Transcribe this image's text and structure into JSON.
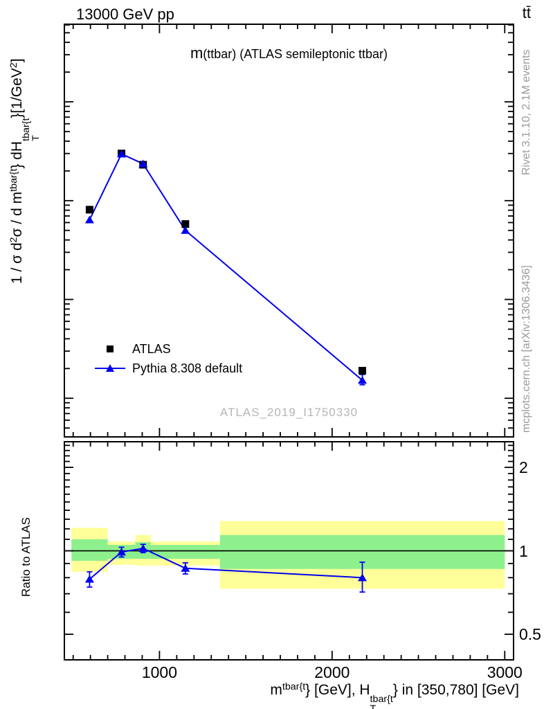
{
  "header": {
    "left": "13000 GeV pp",
    "right": "tt̄"
  },
  "main_title": {
    "prefix": "m",
    "rest": "(ttbar) (ATLAS semileptonic ttbar)"
  },
  "legend": {
    "atlas": "ATLAS",
    "pythia": "Pythia 8.308 default"
  },
  "watermark": "ATLAS_2019_I1750330",
  "side_notes": {
    "top": "Rivet 3.1.10,  2.1M events",
    "bottom": "mcplots.cern.ch [arXiv:1306.3436]"
  },
  "colors": {
    "atlas": "#000000",
    "pythia": "#0000ee",
    "band_green": "#8DF08D",
    "band_yellow": "#FFFF99",
    "frame": "#000000",
    "gray_text": "#9a9a9a",
    "watermark_gray": "#b5b5b5"
  },
  "chart_data": [
    {
      "type": "line",
      "panel": "main",
      "title": "m(ttbar) (ATLAS semileptonic ttbar)",
      "xscale": "linear",
      "yscale": "log",
      "xlim": [
        445,
        3055
      ],
      "ylim": [
        4e-09,
        6.2e-05
      ],
      "xlabel": "m^tbar{t} [GeV], H_T^tbar{t} in [350,780] [GeV]",
      "ylabel": "1 / sigma d2sigma / d m^tbar{t} dH_T^tbar{t} [1/GeV2]",
      "x": [
        595,
        780,
        905,
        1150,
        2175
      ],
      "bin_edges": [
        490,
        700,
        860,
        950,
        1350,
        3000
      ],
      "series": [
        {
          "name": "ATLAS",
          "marker": "square",
          "color": "#000000",
          "line": false,
          "values": [
            8.1e-07,
            3e-06,
            2.31e-06,
            5.8e-07,
            1.9e-08
          ]
        },
        {
          "name": "Pythia 8.308 default",
          "marker": "triangle",
          "color": "#0000ee",
          "line": true,
          "values": [
            6.4e-07,
            2.97e-06,
            2.36e-06,
            5e-07,
            1.52e-08
          ],
          "yerr_lo": [
            0,
            0,
            0,
            0,
            1.5e-09
          ],
          "yerr_hi": [
            0,
            0,
            0,
            0,
            2.2e-09
          ]
        }
      ],
      "ytick_base": "10",
      "ytick_exponents": [
        -5,
        -6,
        -7,
        -8
      ],
      "xticks": [
        1000,
        2000,
        3000
      ],
      "xtick_minor_step": 100,
      "ylabel_parts": [
        {
          "t": "1 / σ d"
        },
        {
          "sup": "2"
        },
        {
          "t": "σ / d m"
        },
        {
          "sup": "tbar{t"
        },
        {
          "t": "} dH"
        },
        {
          "stack": {
            "sup": "tbar{t",
            "sub": "T"
          }
        },
        {
          "t": "}[1/GeV"
        },
        {
          "sup": "2"
        },
        {
          "t": "]"
        }
      ]
    },
    {
      "type": "line",
      "panel": "ratio",
      "ylabel": "Ratio to ATLAS",
      "xscale": "linear",
      "yscale": "log",
      "xlim": [
        445,
        3055
      ],
      "ylim": [
        0.402,
        2.488
      ],
      "x": [
        595,
        780,
        905,
        1150,
        2175
      ],
      "values": [
        0.79,
        0.99,
        1.02,
        0.865,
        0.8
      ],
      "yerr_lo": [
        0.05,
        0.04,
        0.035,
        0.04,
        0.09
      ],
      "yerr_hi": [
        0.05,
        0.04,
        0.035,
        0.04,
        0.11
      ],
      "reference_line": 1,
      "bands": {
        "bins": [
          [
            490,
            700
          ],
          [
            700,
            860
          ],
          [
            860,
            950
          ],
          [
            950,
            1350
          ],
          [
            1350,
            3000
          ]
        ],
        "yellow": [
          [
            0.84,
            1.21
          ],
          [
            0.89,
            1.08
          ],
          [
            0.885,
            1.14
          ],
          [
            0.885,
            1.08
          ],
          [
            0.73,
            1.28
          ]
        ],
        "green": [
          [
            0.92,
            1.1
          ],
          [
            0.935,
            1.05
          ],
          [
            0.935,
            1.075
          ],
          [
            0.935,
            1.05
          ],
          [
            0.86,
            1.14
          ]
        ]
      },
      "yticks": [
        {
          "v": 2,
          "label": "2"
        },
        {
          "v": 1,
          "label": "1"
        },
        {
          "v": 0.5,
          "label": "0.5"
        }
      ],
      "ytick_minors": [
        0.4,
        0.6,
        0.7,
        0.8,
        0.9,
        1.1,
        1.2,
        1.3,
        1.4,
        1.5,
        1.6,
        1.7,
        1.8,
        1.9,
        2.1,
        2.2,
        2.3,
        2.4
      ],
      "xticks": [
        1000,
        2000,
        3000
      ],
      "xtick_minor_step": 100,
      "xlabel_parts": [
        {
          "t": "m"
        },
        {
          "sup": "tbar{t"
        },
        {
          "t": "} [GeV], H"
        },
        {
          "stack": {
            "sup": "tbar{t",
            "sub": "T"
          }
        },
        {
          "t": "} in [350,780] [GeV]"
        }
      ]
    }
  ]
}
